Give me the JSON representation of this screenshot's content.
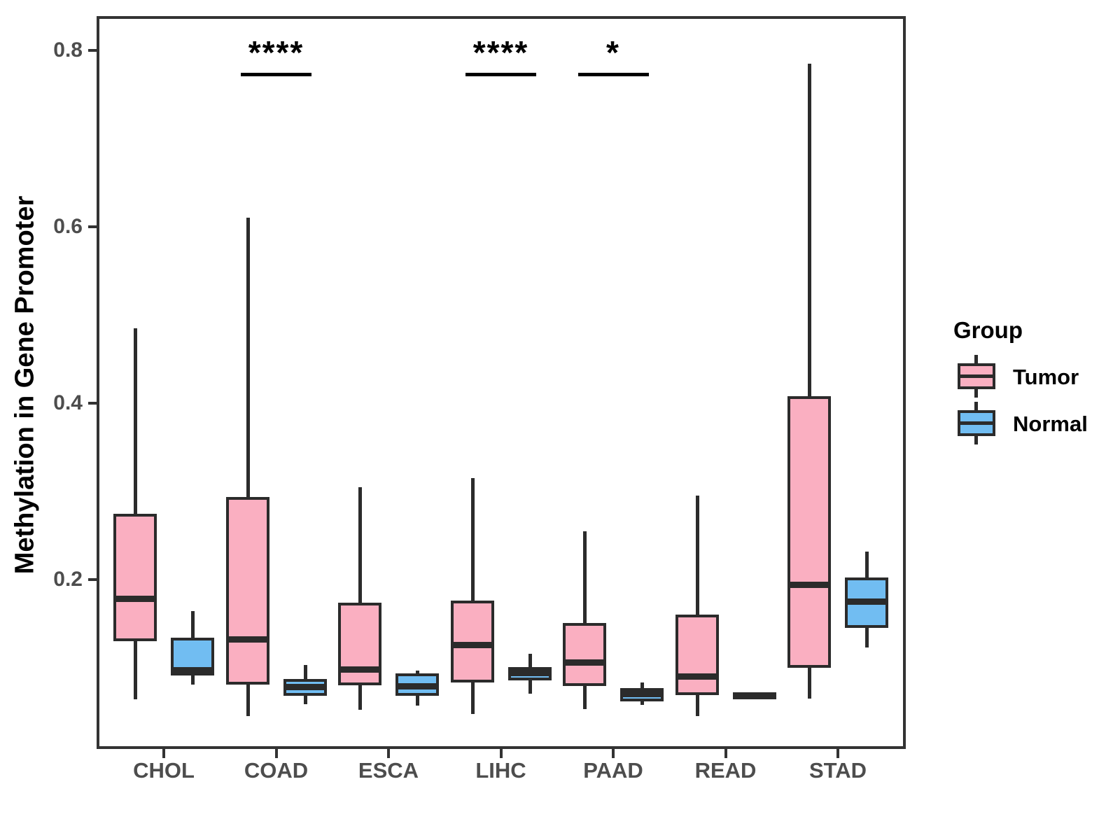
{
  "chart_data": {
    "type": "boxplot",
    "title": "",
    "xlabel": "",
    "ylabel": "Methylation in Gene Promoter",
    "ylim": [
      0.008,
      0.839
    ],
    "grid": false,
    "legend_position": "right",
    "categories": [
      "CHOL",
      "COAD",
      "ESCA",
      "LIHC",
      "PAAD",
      "READ",
      "STAD"
    ],
    "yticks": [
      {
        "label": "0.2",
        "value": 0.2
      },
      {
        "label": "0.4",
        "value": 0.4
      },
      {
        "label": "0.6",
        "value": 0.6
      },
      {
        "label": "0.8",
        "value": 0.8
      }
    ],
    "series": [
      {
        "name": "Tumor",
        "color": "#FAAFC1",
        "boxes": [
          {
            "category": "CHOL",
            "whisker_low": 0.064,
            "q1": 0.13,
            "median": 0.178,
            "q3": 0.275,
            "whisker_high": 0.485
          },
          {
            "category": "COAD",
            "whisker_low": 0.045,
            "q1": 0.081,
            "median": 0.132,
            "q3": 0.294,
            "whisker_high": 0.61
          },
          {
            "category": "ESCA",
            "whisker_low": 0.052,
            "q1": 0.08,
            "median": 0.098,
            "q3": 0.174,
            "whisker_high": 0.305
          },
          {
            "category": "LIHC",
            "whisker_low": 0.048,
            "q1": 0.083,
            "median": 0.126,
            "q3": 0.176,
            "whisker_high": 0.315
          },
          {
            "category": "PAAD",
            "whisker_low": 0.053,
            "q1": 0.079,
            "median": 0.106,
            "q3": 0.151,
            "whisker_high": 0.255
          },
          {
            "category": "READ",
            "whisker_low": 0.045,
            "q1": 0.069,
            "median": 0.09,
            "q3": 0.16,
            "whisker_high": 0.295
          },
          {
            "category": "STAD",
            "whisker_low": 0.065,
            "q1": 0.1,
            "median": 0.194,
            "q3": 0.408,
            "whisker_high": 0.785
          }
        ]
      },
      {
        "name": "Normal",
        "color": "#71BDF2",
        "boxes": [
          {
            "category": "CHOL",
            "whisker_low": 0.081,
            "q1": 0.091,
            "median": 0.097,
            "q3": 0.134,
            "whisker_high": 0.164
          },
          {
            "category": "COAD",
            "whisker_low": 0.059,
            "q1": 0.068,
            "median": 0.078,
            "q3": 0.087,
            "whisker_high": 0.103
          },
          {
            "category": "ESCA",
            "whisker_low": 0.057,
            "q1": 0.068,
            "median": 0.079,
            "q3": 0.094,
            "whisker_high": 0.097
          },
          {
            "category": "LIHC",
            "whisker_low": 0.071,
            "q1": 0.086,
            "median": 0.094,
            "q3": 0.101,
            "whisker_high": 0.116
          },
          {
            "category": "PAAD",
            "whisker_low": 0.058,
            "q1": 0.062,
            "median": 0.07,
            "q3": 0.077,
            "whisker_high": 0.083
          },
          {
            "category": "READ",
            "whisker_low": 0.064,
            "q1": 0.064,
            "median": 0.068,
            "q3": 0.072,
            "whisker_high": 0.072
          },
          {
            "category": "STAD",
            "whisker_low": 0.123,
            "q1": 0.145,
            "median": 0.175,
            "q3": 0.202,
            "whisker_high": 0.232
          }
        ]
      }
    ],
    "significance": [
      {
        "category": "COAD",
        "label": "****"
      },
      {
        "category": "LIHC",
        "label": "****"
      },
      {
        "category": "PAAD",
        "label": "*"
      }
    ],
    "legend": {
      "title": "Group",
      "entries": [
        {
          "label": "Tumor",
          "color": "#FAAFC1"
        },
        {
          "label": "Normal",
          "color": "#71BDF2"
        }
      ]
    },
    "style": {
      "box_border_color": "#2b2b2b",
      "axis_color": "#333333",
      "tick_label_color": "#4d4d4d"
    }
  }
}
